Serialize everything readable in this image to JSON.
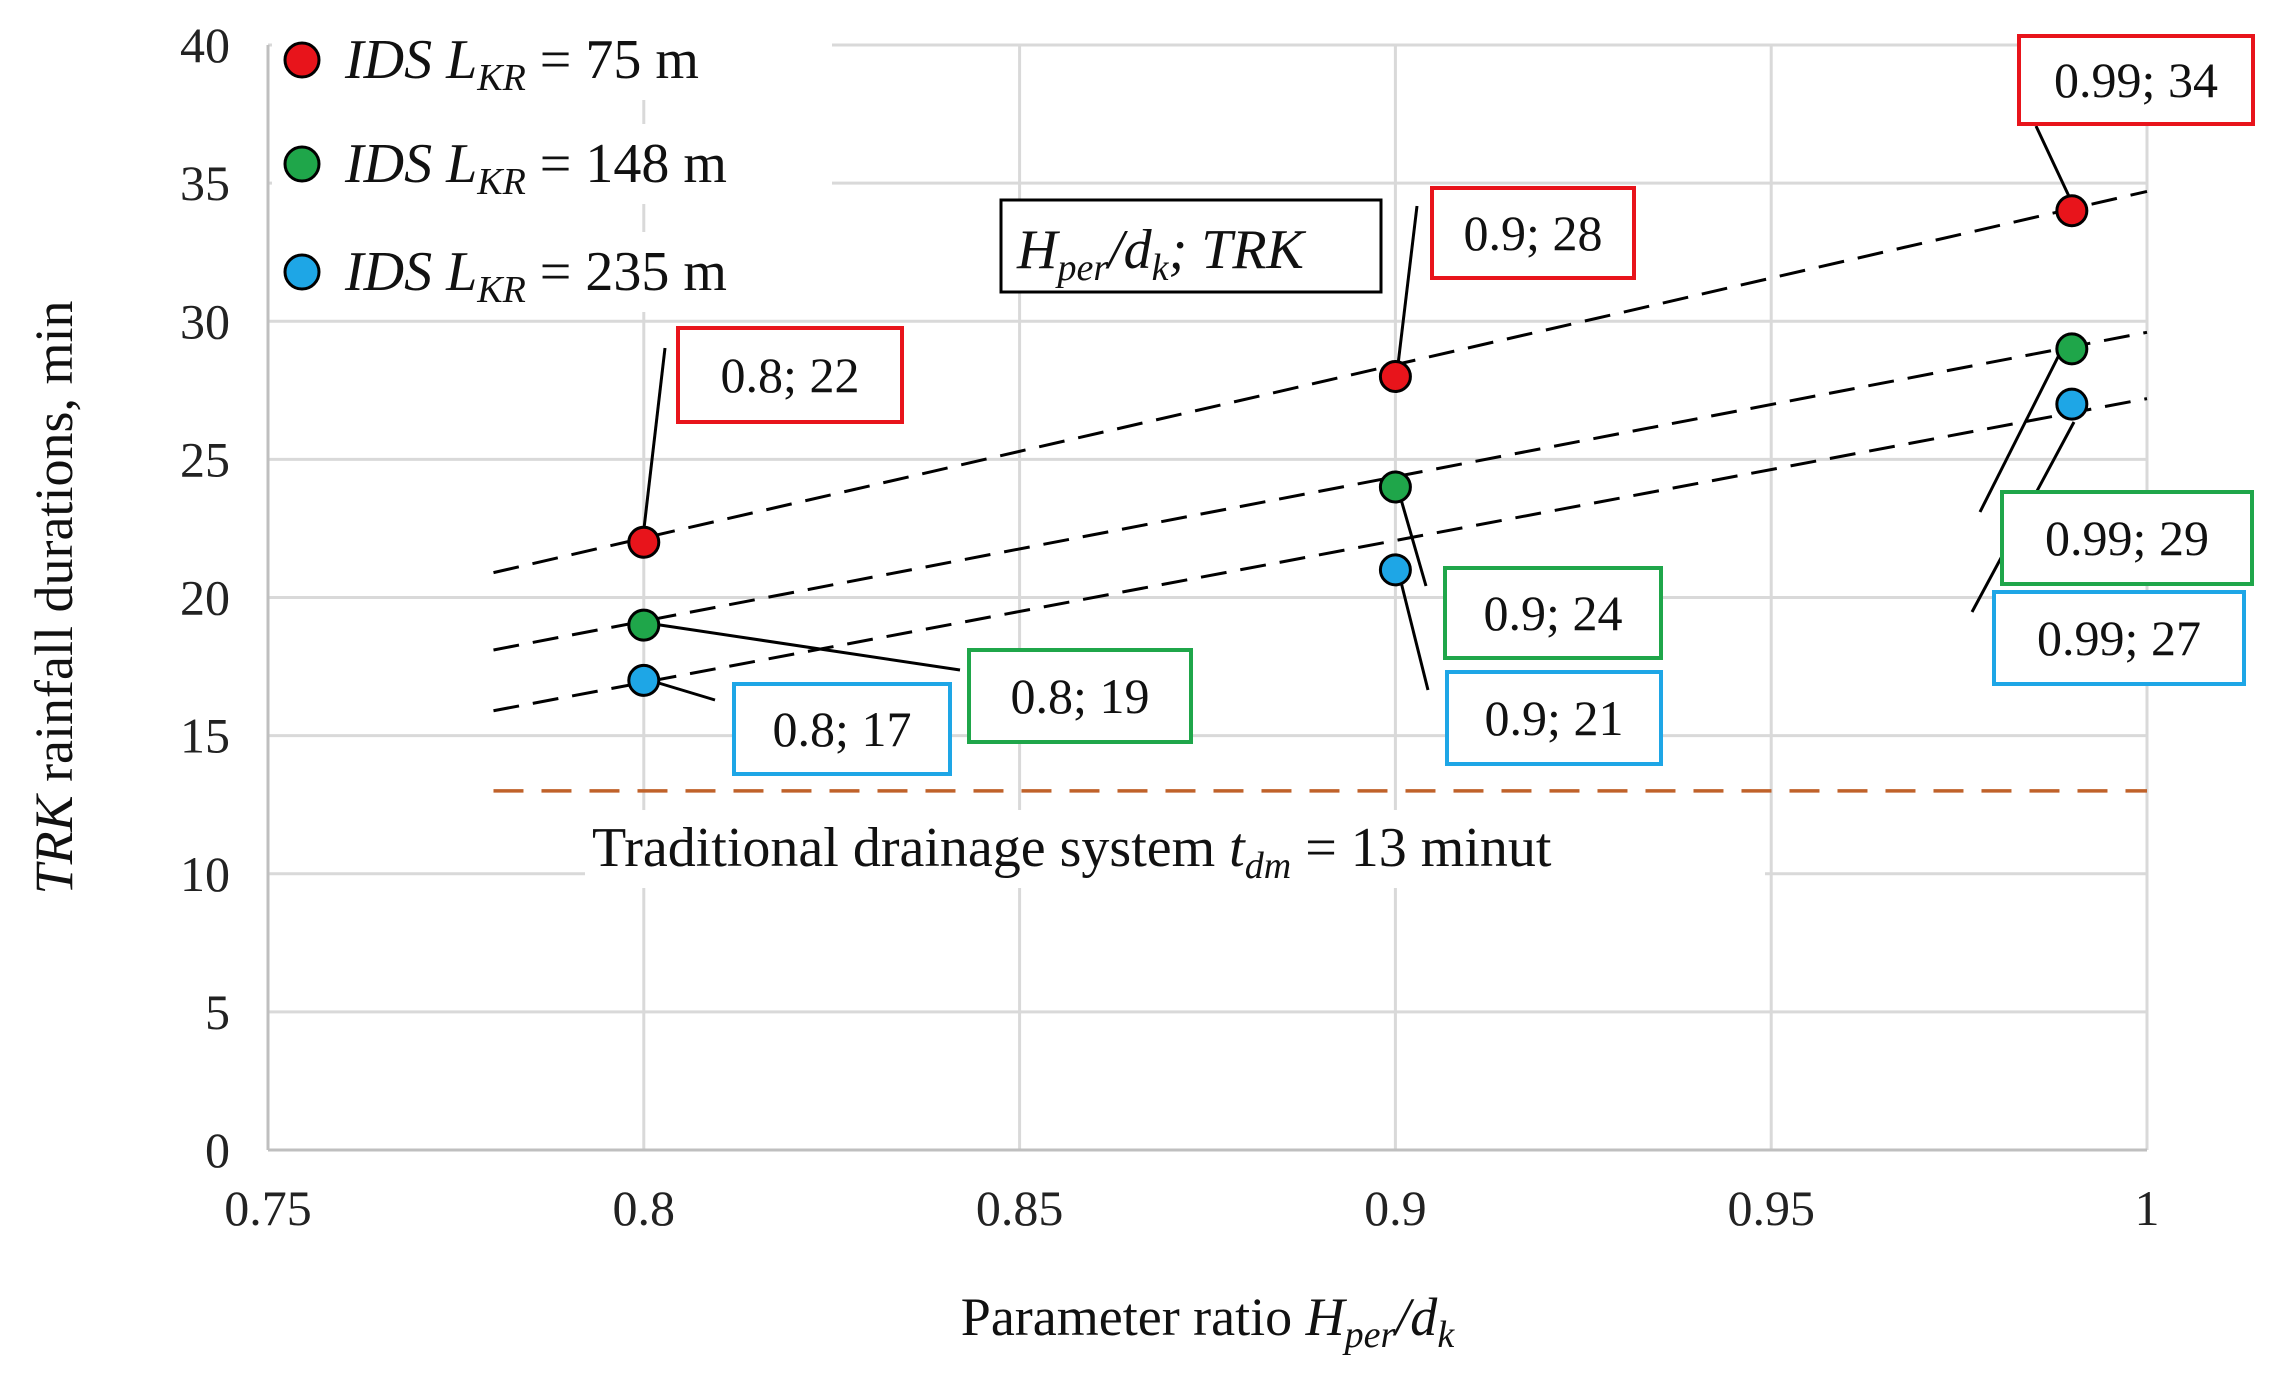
{
  "chart_data": {
    "type": "scatter",
    "xlabel_prefix": "Parameter ratio",
    "xlabel_var": "H",
    "xlabel_var_sub": "per",
    "xlabel_slash": "/d",
    "xlabel_var2_sub": "k",
    "ylabel_italic": "TRK",
    "ylabel_rest": " rainfall durations, min",
    "xlim": [
      0.75,
      1.0
    ],
    "ylim": [
      0,
      40
    ],
    "x_ticks": [
      "0.75",
      "0.8",
      "0.85",
      "0.9",
      "0.95",
      "1"
    ],
    "x_tick_values": [
      0.75,
      0.8,
      0.85,
      0.9,
      0.95,
      1.0
    ],
    "y_ticks": [
      "0",
      "5",
      "10",
      "15",
      "20",
      "25",
      "30",
      "35",
      "40"
    ],
    "y_tick_values": [
      0,
      5,
      10,
      15,
      20,
      25,
      30,
      35,
      40
    ],
    "grid": true,
    "legend_position": "top-left",
    "series": [
      {
        "legend_prefix": "IDS L",
        "legend_sub": "KR",
        "legend_value": " = 75 m",
        "color": "#e8141b",
        "x": [
          0.8,
          0.9,
          0.99
        ],
        "y": [
          22,
          28,
          34
        ],
        "labels": [
          "0.8; 22",
          "0.9; 28",
          "0.99; 34"
        ],
        "trend": {
          "x": [
            0.78,
            1.0
          ],
          "y": [
            20.9,
            34.7
          ]
        }
      },
      {
        "legend_prefix": "IDS L",
        "legend_sub": "KR",
        "legend_value": " = 148 m",
        "color": "#1fa64a",
        "x": [
          0.8,
          0.9,
          0.99
        ],
        "y": [
          19,
          24,
          29
        ],
        "labels": [
          "0.8; 19",
          "0.9; 24",
          "0.99; 29"
        ],
        "trend": {
          "x": [
            0.78,
            1.0
          ],
          "y": [
            18.1,
            29.6
          ]
        }
      },
      {
        "legend_prefix": "IDS L",
        "legend_sub": "KR",
        "legend_value": " = 235 m",
        "color": "#1ea6e6",
        "x": [
          0.8,
          0.9,
          0.99
        ],
        "y": [
          17,
          21,
          27
        ],
        "labels": [
          "0.8; 17",
          "0.9; 21",
          "0.99; 27"
        ],
        "trend": {
          "x": [
            0.78,
            1.0
          ],
          "y": [
            15.9,
            27.2
          ]
        }
      }
    ],
    "reference_line": {
      "y": 13,
      "color": "#c0622a",
      "label_prefix": "Traditional drainage system ",
      "label_var": "t",
      "label_sub": "dm",
      "label_rest": " = 13 minut"
    },
    "key_box": {
      "var": "H",
      "var_sub": "per",
      "slash": "/d",
      "var2_sub": "k",
      "rest": "; TRK"
    }
  }
}
